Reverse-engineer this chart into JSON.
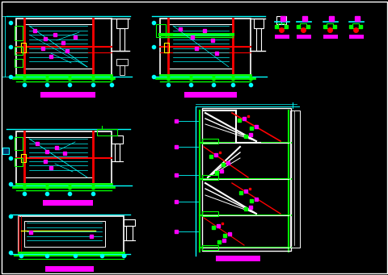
{
  "bg_color": "#000000",
  "cyan": "#00ffff",
  "green": "#00ff00",
  "magenta": "#ff00ff",
  "red": "#ff0000",
  "white": "#ffffff",
  "yellow": "#ffff00",
  "orange": "#ff8800",
  "figsize": [
    4.81,
    3.41
  ],
  "dpi": 100
}
